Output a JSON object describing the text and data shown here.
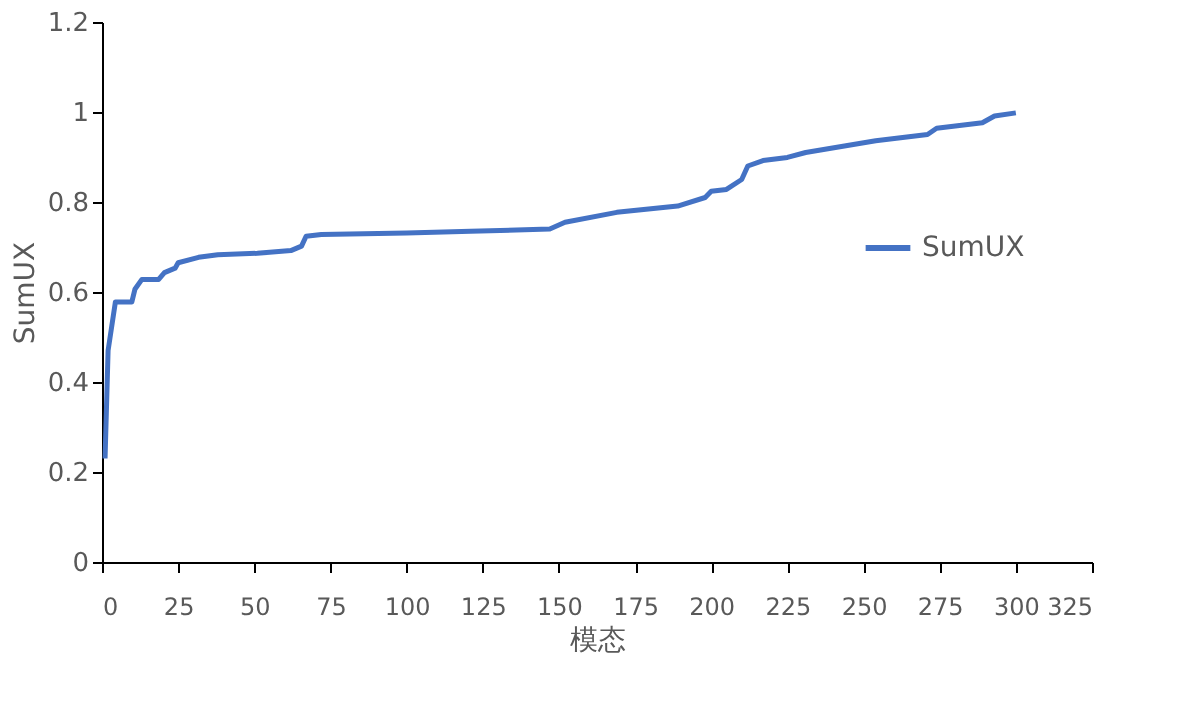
{
  "chart_data": {
    "type": "line",
    "xlabel": "模态",
    "ylabel": "SumUX",
    "xlim": [
      0,
      325
    ],
    "xticks": [
      0,
      25,
      50,
      75,
      100,
      125,
      150,
      175,
      200,
      225,
      250,
      275,
      300,
      325
    ],
    "ylim": [
      0,
      1.2
    ],
    "yticks": [
      0,
      0.2,
      0.4,
      0.6,
      0.8,
      1,
      1.2
    ],
    "grid": false,
    "legend": "right",
    "line_style": "solid",
    "marker": "none",
    "series": [
      {
        "name": "SumUX",
        "color": "#4472c4",
        "x": [
          1,
          2,
          4.4,
          9.8,
          10.8,
          13.1,
          18.6,
          20.5,
          24,
          25,
          31.7,
          38,
          51,
          62,
          65.5,
          67,
          72,
          100,
          121,
          147,
          152,
          169,
          189,
          198,
          200,
          205,
          210,
          212,
          217,
          225,
          231,
          254,
          271,
          274,
          289,
          293,
          300
        ],
        "values": [
          0.23,
          0.47,
          0.578,
          0.578,
          0.606,
          0.628,
          0.628,
          0.643,
          0.653,
          0.665,
          0.677,
          0.683,
          0.686,
          0.692,
          0.702,
          0.724,
          0.728,
          0.731,
          0.735,
          0.74,
          0.755,
          0.777,
          0.791,
          0.81,
          0.824,
          0.828,
          0.85,
          0.88,
          0.892,
          0.899,
          0.91,
          0.936,
          0.95,
          0.964,
          0.976,
          0.991,
          0.998
        ]
      }
    ]
  }
}
